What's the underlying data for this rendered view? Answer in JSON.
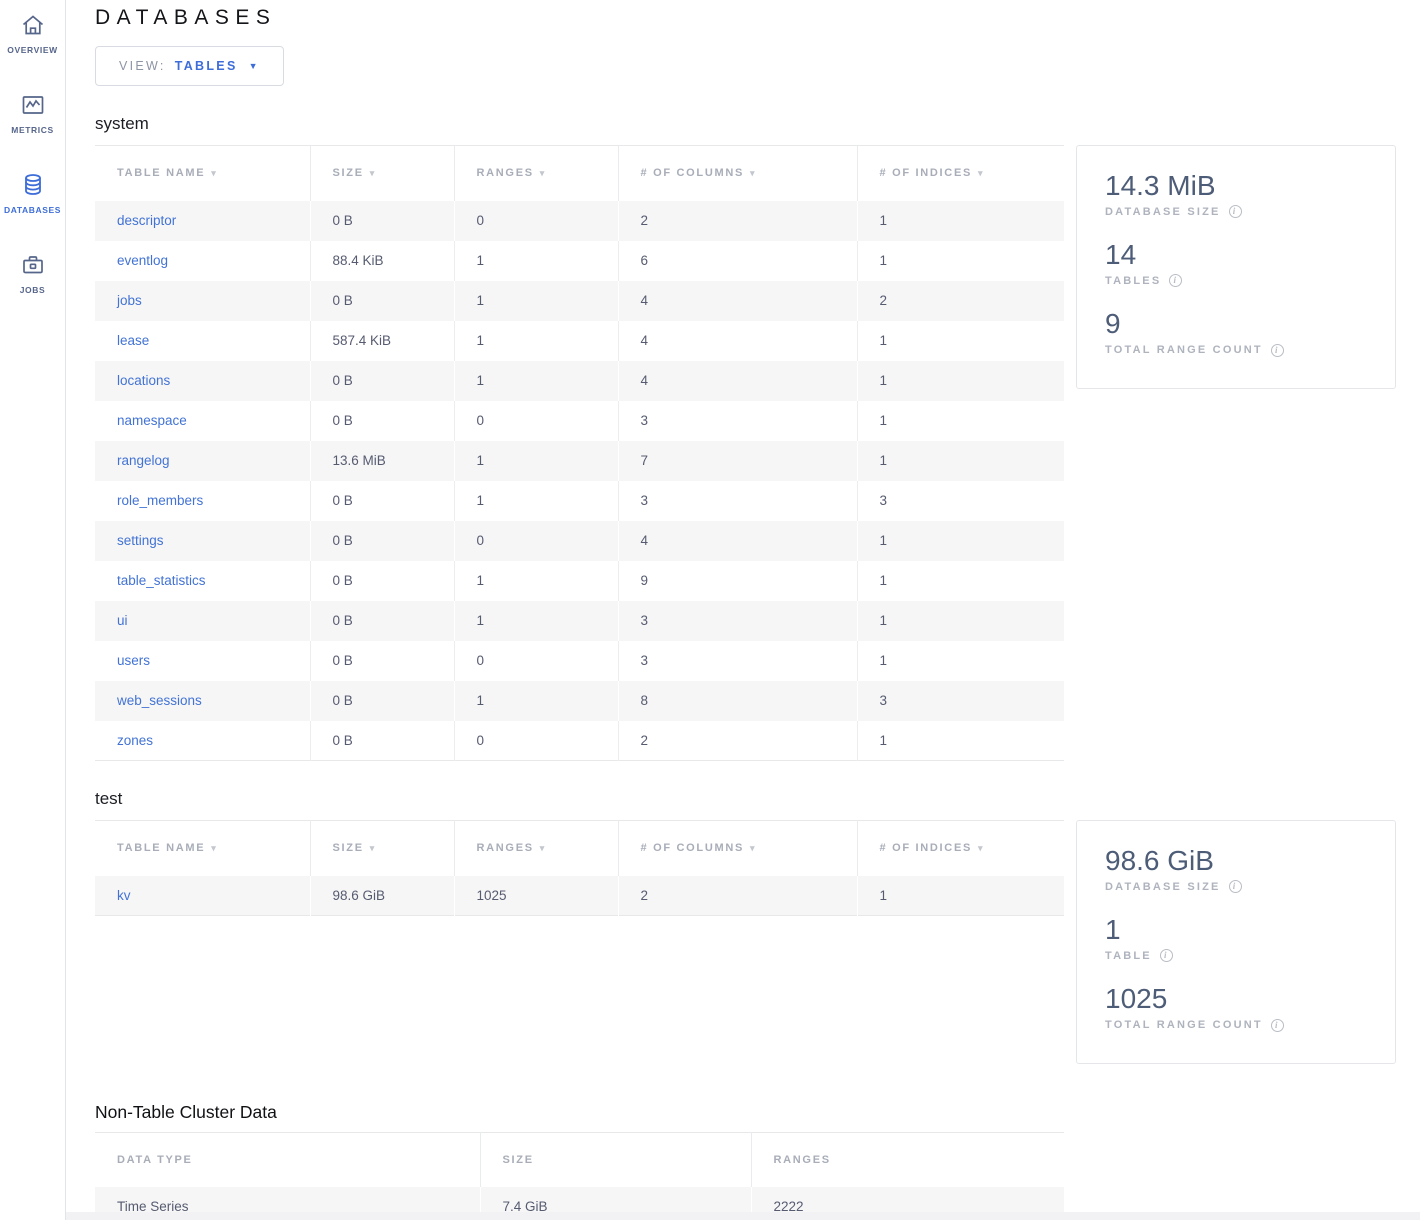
{
  "colors": {
    "accent": "#3d6dd8",
    "link": "#4273d4",
    "stripe": "#f6f6f7",
    "border": "#e7e8ea",
    "card_value": "#4d5c77",
    "muted_label": "#a8adb8"
  },
  "icons": {
    "sort_arrow": "▾",
    "caret_down": "▼",
    "info": "i"
  },
  "sidebar": {
    "items": [
      {
        "label": "OVERVIEW",
        "icon": "home-icon",
        "active": false
      },
      {
        "label": "METRICS",
        "icon": "chart-icon",
        "active": false
      },
      {
        "label": "DATABASES",
        "icon": "database-icon",
        "active": true
      },
      {
        "label": "JOBS",
        "icon": "briefcase-icon",
        "active": false
      }
    ]
  },
  "header": {
    "title": "DATABASES",
    "view_label": "VIEW:",
    "view_value": "TABLES"
  },
  "db_table_columns": [
    "TABLE NAME",
    "SIZE",
    "RANGES",
    "# OF COLUMNS",
    "# OF INDICES"
  ],
  "databases": [
    {
      "name": "system",
      "summary": [
        {
          "value": "14.3 MiB",
          "label": "DATABASE SIZE"
        },
        {
          "value": "14",
          "label": "TABLES"
        },
        {
          "value": "9",
          "label": "TOTAL RANGE COUNT"
        }
      ],
      "rows": [
        {
          "name": "descriptor",
          "size": "0 B",
          "ranges": "0",
          "columns": "2",
          "indices": "1"
        },
        {
          "name": "eventlog",
          "size": "88.4 KiB",
          "ranges": "1",
          "columns": "6",
          "indices": "1"
        },
        {
          "name": "jobs",
          "size": "0 B",
          "ranges": "1",
          "columns": "4",
          "indices": "2"
        },
        {
          "name": "lease",
          "size": "587.4 KiB",
          "ranges": "1",
          "columns": "4",
          "indices": "1"
        },
        {
          "name": "locations",
          "size": "0 B",
          "ranges": "1",
          "columns": "4",
          "indices": "1"
        },
        {
          "name": "namespace",
          "size": "0 B",
          "ranges": "0",
          "columns": "3",
          "indices": "1"
        },
        {
          "name": "rangelog",
          "size": "13.6 MiB",
          "ranges": "1",
          "columns": "7",
          "indices": "1"
        },
        {
          "name": "role_members",
          "size": "0 B",
          "ranges": "1",
          "columns": "3",
          "indices": "3"
        },
        {
          "name": "settings",
          "size": "0 B",
          "ranges": "0",
          "columns": "4",
          "indices": "1"
        },
        {
          "name": "table_statistics",
          "size": "0 B",
          "ranges": "1",
          "columns": "9",
          "indices": "1"
        },
        {
          "name": "ui",
          "size": "0 B",
          "ranges": "1",
          "columns": "3",
          "indices": "1"
        },
        {
          "name": "users",
          "size": "0 B",
          "ranges": "0",
          "columns": "3",
          "indices": "1"
        },
        {
          "name": "web_sessions",
          "size": "0 B",
          "ranges": "1",
          "columns": "8",
          "indices": "3"
        },
        {
          "name": "zones",
          "size": "0 B",
          "ranges": "0",
          "columns": "2",
          "indices": "1"
        }
      ]
    },
    {
      "name": "test",
      "summary": [
        {
          "value": "98.6 GiB",
          "label": "DATABASE SIZE"
        },
        {
          "value": "1",
          "label": "TABLE"
        },
        {
          "value": "1025",
          "label": "TOTAL RANGE COUNT"
        }
      ],
      "rows": [
        {
          "name": "kv",
          "size": "98.6 GiB",
          "ranges": "1025",
          "columns": "2",
          "indices": "1"
        }
      ]
    }
  ],
  "non_table": {
    "title": "Non-Table Cluster Data",
    "columns": [
      "DATA TYPE",
      "SIZE",
      "RANGES"
    ],
    "rows": [
      {
        "type": "Time Series",
        "size": "7.4 GiB",
        "ranges": "2222"
      }
    ]
  }
}
